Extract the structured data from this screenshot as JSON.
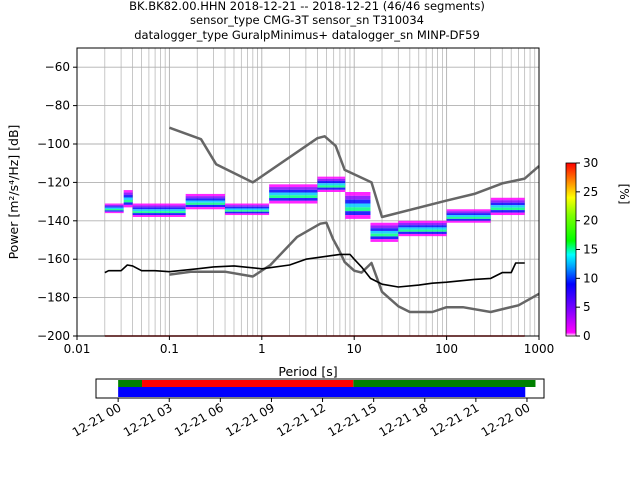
{
  "chart_data": [
    {
      "type": "line",
      "title_lines": [
        "BK.BK82.00.HHN   2018-12-21 -- 2018-12-21  (46/46 segments)",
        "sensor_type CMG-3T sensor_sn T310034",
        "datalogger_type GuralpMinimus+ datalogger_sn MINP-DF59"
      ],
      "xlabel": "Period [s]",
      "ylabel": "Power [m²/s⁴/Hz] [dB]",
      "x_scale": "log",
      "xlim": [
        0.01,
        1000
      ],
      "ylim": [
        -200,
        -50
      ],
      "x_ticks": [
        {
          "v": 0.01,
          "label": "0.01"
        },
        {
          "v": 0.1,
          "label": "0.1"
        },
        {
          "v": 1,
          "label": "1"
        },
        {
          "v": 10,
          "label": "10"
        },
        {
          "v": 100,
          "label": "100"
        },
        {
          "v": 1000,
          "label": "1000"
        }
      ],
      "y_ticks": [
        {
          "v": -60,
          "label": "−60"
        },
        {
          "v": -80,
          "label": "−80"
        },
        {
          "v": -100,
          "label": "−100"
        },
        {
          "v": -120,
          "label": "−120"
        },
        {
          "v": -140,
          "label": "−140"
        },
        {
          "v": -160,
          "label": "−160"
        },
        {
          "v": -180,
          "label": "−180"
        },
        {
          "v": -200,
          "label": "−200"
        }
      ],
      "grid": true,
      "series": [
        {
          "color": "#666666",
          "points": [
            [
              0.1,
              -91.5
            ],
            [
              0.22,
              -97.5
            ],
            [
              0.32,
              -110.5
            ],
            [
              0.8,
              -120
            ],
            [
              4,
              -97
            ],
            [
              4.8,
              -96
            ],
            [
              6.3,
              -101
            ],
            [
              7.9,
              -113.5
            ],
            [
              15.4,
              -120
            ],
            [
              20,
              -138
            ],
            [
              100,
              -129.5
            ],
            [
              200,
              -126
            ],
            [
              400,
              -120.5
            ],
            [
              700,
              -118
            ],
            [
              1000,
              -111.5
            ]
          ]
        },
        {
          "color": "#666666",
          "points": [
            [
              0.1,
              -168
            ],
            [
              0.17,
              -166.5
            ],
            [
              0.4,
              -166.5
            ],
            [
              0.8,
              -169
            ],
            [
              1.24,
              -163
            ],
            [
              2.4,
              -148.5
            ],
            [
              4.3,
              -141.5
            ],
            [
              5,
              -141
            ],
            [
              5.9,
              -149.5
            ],
            [
              6.9,
              -155.5
            ],
            [
              7.9,
              -161.5
            ],
            [
              10,
              -166
            ],
            [
              12,
              -167
            ],
            [
              15.4,
              -162
            ],
            [
              20,
              -177
            ],
            [
              30,
              -184.5
            ],
            [
              40,
              -187.5
            ],
            [
              70,
              -187.5
            ],
            [
              100,
              -185
            ],
            [
              150,
              -185
            ],
            [
              300,
              -187.5
            ],
            [
              600,
              -184
            ],
            [
              1000,
              -178
            ]
          ]
        },
        {
          "color": "#000000",
          "points": [
            [
              0.02,
              -167
            ],
            [
              0.022,
              -166
            ],
            [
              0.03,
              -166
            ],
            [
              0.035,
              -163
            ],
            [
              0.04,
              -163.5
            ],
            [
              0.05,
              -166
            ],
            [
              0.07,
              -166
            ],
            [
              0.1,
              -166.5
            ],
            [
              0.2,
              -165
            ],
            [
              0.3,
              -164
            ],
            [
              0.5,
              -163.5
            ],
            [
              1,
              -165
            ],
            [
              2,
              -163
            ],
            [
              3,
              -160
            ],
            [
              5,
              -158.5
            ],
            [
              7,
              -157.5
            ],
            [
              9,
              -157.5
            ],
            [
              10,
              -160
            ],
            [
              12,
              -164
            ],
            [
              15,
              -170
            ],
            [
              20,
              -173
            ],
            [
              30,
              -174.5
            ],
            [
              50,
              -173.5
            ],
            [
              70,
              -172.5
            ],
            [
              100,
              -172
            ],
            [
              200,
              -170.5
            ],
            [
              300,
              -170
            ],
            [
              400,
              -167
            ],
            [
              500,
              -167
            ],
            [
              560,
              -162
            ],
            [
              700,
              -162
            ]
          ]
        },
        {
          "color": "#000000",
          "points": [
            [
              0.02,
              -200
            ],
            [
              700,
              -200
            ]
          ]
        }
      ],
      "psd_density": {
        "colormap": "pqlx",
        "period_ranges": [
          {
            "x0": 0.02,
            "x1": 0.032,
            "band": [
              -131,
              -136
            ]
          },
          {
            "x0": 0.032,
            "x1": 0.04,
            "band": [
              -124,
              -133
            ]
          },
          {
            "x0": 0.04,
            "x1": 0.15,
            "band": [
              -131,
              -138
            ]
          },
          {
            "x0": 0.15,
            "x1": 0.4,
            "band": [
              -126,
              -134
            ]
          },
          {
            "x0": 0.4,
            "x1": 1.2,
            "band": [
              -131,
              -137
            ]
          },
          {
            "x0": 1.2,
            "x1": 4,
            "band": [
              -121,
              -131
            ]
          },
          {
            "x0": 4,
            "x1": 8,
            "band": [
              -117,
              -125
            ]
          },
          {
            "x0": 8,
            "x1": 15,
            "band": [
              -125,
              -139
            ]
          },
          {
            "x0": 15,
            "x1": 30,
            "band": [
              -141,
              -151
            ]
          },
          {
            "x0": 30,
            "x1": 100,
            "band": [
              -140,
              -148
            ]
          },
          {
            "x0": 100,
            "x1": 300,
            "band": [
              -134,
              -141
            ]
          },
          {
            "x0": 300,
            "x1": 700,
            "band": [
              -128,
              -137
            ]
          }
        ]
      }
    },
    {
      "type": "heatmap",
      "colorbar": {
        "label": "[%]",
        "range": [
          0,
          30
        ],
        "ticks": [
          {
            "v": 0,
            "label": "0"
          },
          {
            "v": 5,
            "label": "5"
          },
          {
            "v": 10,
            "label": "10"
          },
          {
            "v": 15,
            "label": "15"
          },
          {
            "v": 20,
            "label": "20"
          },
          {
            "v": 25,
            "label": "25"
          },
          {
            "v": 30,
            "label": "30"
          }
        ]
      }
    },
    {
      "type": "bar",
      "x_ticks": [
        "12-21 00",
        "12-21 03",
        "12-21 06",
        "12-21 09",
        "12-21 12",
        "12-21 15",
        "12-21 18",
        "12-21 21",
        "12-22 00"
      ],
      "xlim_hours": [
        -1.3,
        25
      ],
      "series": [
        {
          "color": "#008000",
          "spans": [
            [
              0,
              1.4
            ],
            [
              13.8,
              24.5
            ]
          ]
        },
        {
          "color": "#ff0000",
          "spans": [
            [
              1.4,
              13.8
            ]
          ]
        },
        {
          "color": "#0000ff",
          "spans": [
            [
              0,
              23.9
            ]
          ]
        }
      ]
    }
  ]
}
